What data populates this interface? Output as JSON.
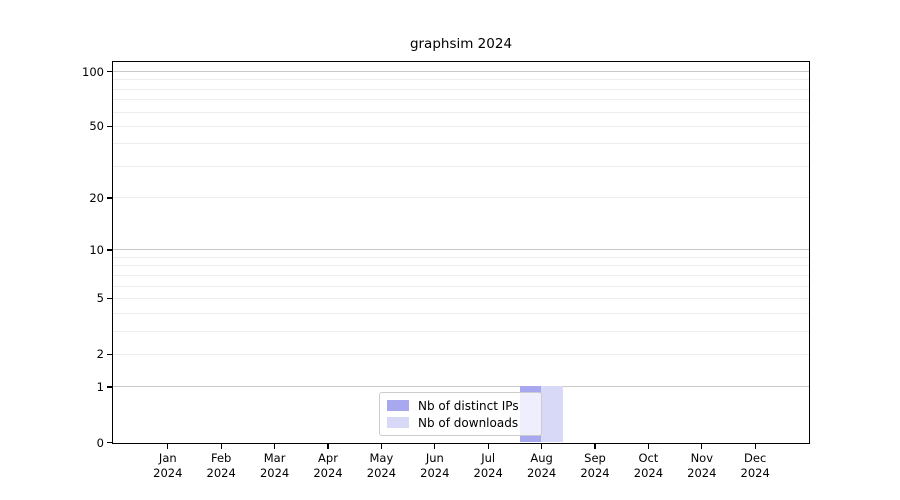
{
  "title": "graphsim 2024",
  "chart_data": {
    "type": "bar",
    "title": "graphsim 2024",
    "x_months": [
      "Jan",
      "Feb",
      "Mar",
      "Apr",
      "May",
      "Jun",
      "Jul",
      "Aug",
      "Sep",
      "Oct",
      "Nov",
      "Dec"
    ],
    "x_year": "2024",
    "categories": [
      "Jan 2024",
      "Feb 2024",
      "Mar 2024",
      "Apr 2024",
      "May 2024",
      "Jun 2024",
      "Jul 2024",
      "Aug 2024",
      "Sep 2024",
      "Oct 2024",
      "Nov 2024",
      "Dec 2024"
    ],
    "series": [
      {
        "name": "Nb of distinct IPs",
        "color": "#a8a8f0",
        "values": [
          0,
          0,
          0,
          0,
          0,
          0,
          0,
          1,
          0,
          0,
          0,
          0
        ]
      },
      {
        "name": "Nb of downloads",
        "color": "#d8d8f7",
        "values": [
          0,
          0,
          0,
          0,
          0,
          0,
          0,
          1,
          0,
          0,
          0,
          0
        ]
      }
    ],
    "yscale": "log1p",
    "yticks": [
      100,
      50,
      20,
      10,
      5,
      2,
      1,
      0
    ],
    "y_major_gridlines": [
      1,
      10,
      100
    ],
    "y_minor_gridlines": [
      2,
      3,
      4,
      5,
      6,
      7,
      8,
      9,
      20,
      30,
      40,
      50,
      60,
      70,
      80,
      90
    ],
    "ylim": [
      0,
      112
    ],
    "xlabel": "",
    "ylabel": "",
    "grid": "horizontal",
    "legend_position": "bottom-center",
    "colors": {
      "grid_major": "#c9c9c9",
      "grid_minor": "#ededed",
      "axis": "#000000",
      "legend_border": "#cccccc"
    }
  }
}
